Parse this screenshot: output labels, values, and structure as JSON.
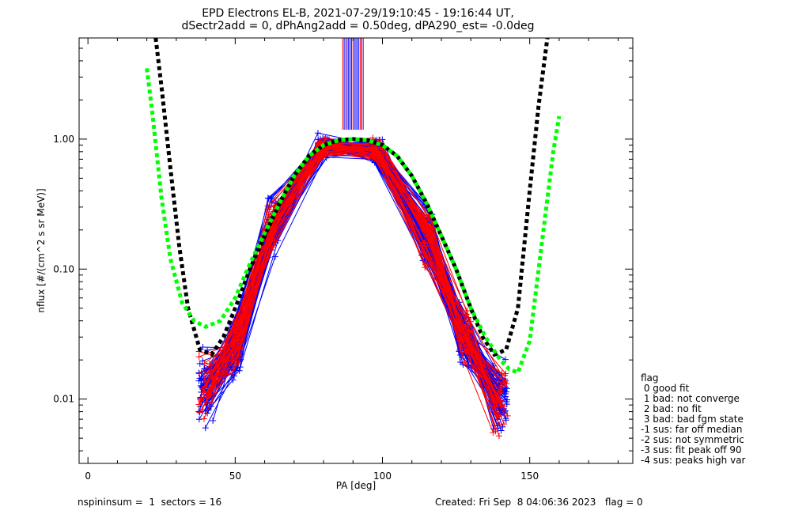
{
  "chart_data": {
    "type": "line",
    "title": "EPD Electrons EL-B, 2021-07-29/19:10:45 - 19:16:44 UT,",
    "subtitle": "dSectr2add = 0, dPhAng2add = 0.50deg, dPA290_est=  -0.0deg",
    "xlabel": "PA [deg]",
    "ylabel": "nflux [#/(cm^2 s sr MeV)]",
    "xlim": [
      -3,
      185
    ],
    "ylim": [
      0.0032,
      6.0
    ],
    "yscale": "log",
    "x_ticks": [
      0,
      50,
      100,
      150
    ],
    "x_tick_labels": [
      "0",
      "50",
      "100",
      "150"
    ],
    "y_ticks": [
      0.01,
      0.1,
      1.0
    ],
    "y_tick_labels": [
      "0.01",
      "0.10",
      "1.00"
    ],
    "colors": {
      "red": "#ff0000",
      "blue": "#0000ff",
      "green": "#00ff00",
      "black": "#000000"
    },
    "sweeps": {
      "blue_count": 70,
      "red_count": 35,
      "pa_base": [
        40,
        50,
        63,
        80,
        98,
        115,
        128,
        140
      ],
      "flux_base": [
        0.012,
        0.025,
        0.22,
        0.86,
        0.8,
        0.18,
        0.03,
        0.01
      ]
    },
    "fit_black": {
      "x": [
        23,
        25,
        28,
        31,
        34,
        38,
        42,
        46,
        50,
        55,
        60,
        65,
        70,
        75,
        80,
        85,
        90,
        95,
        100,
        105,
        110,
        115,
        120,
        125,
        130,
        134,
        138,
        142,
        146,
        150,
        153,
        156
      ],
      "y": [
        6.0,
        2.5,
        0.6,
        0.15,
        0.05,
        0.024,
        0.022,
        0.03,
        0.05,
        0.1,
        0.18,
        0.32,
        0.52,
        0.74,
        0.9,
        0.98,
        1.0,
        0.98,
        0.9,
        0.74,
        0.52,
        0.32,
        0.18,
        0.1,
        0.05,
        0.03,
        0.022,
        0.024,
        0.05,
        0.4,
        1.8,
        6.0
      ]
    },
    "fit_green": {
      "x": [
        20,
        22,
        25,
        28,
        32,
        36,
        40,
        45,
        50,
        55,
        60,
        65,
        70,
        75,
        80,
        85,
        90,
        95,
        100,
        105,
        110,
        115,
        120,
        125,
        130,
        135,
        140,
        143,
        146,
        150,
        154,
        158,
        160
      ],
      "y": [
        3.5,
        1.5,
        0.35,
        0.12,
        0.055,
        0.04,
        0.036,
        0.04,
        0.06,
        0.11,
        0.19,
        0.32,
        0.52,
        0.74,
        0.9,
        0.98,
        1.0,
        0.98,
        0.9,
        0.74,
        0.52,
        0.32,
        0.18,
        0.1,
        0.05,
        0.03,
        0.02,
        0.017,
        0.016,
        0.028,
        0.15,
        0.8,
        1.5
      ]
    }
  },
  "legend": {
    "title": "flag",
    "items": [
      " 0 good fit",
      " 1 bad: not converge",
      " 2 bad: no fit",
      " 3 bad: bad fgm state",
      "-1 sus: far off median",
      "-2 sus: not symmetric",
      "-3 sus: fit peak off 90",
      "-4 sus: peaks high var"
    ]
  },
  "footer": {
    "left": "nspininsum =  1  sectors = 16",
    "right": "Created: Fri Sep  8 04:06:36 2023   flag = 0"
  }
}
